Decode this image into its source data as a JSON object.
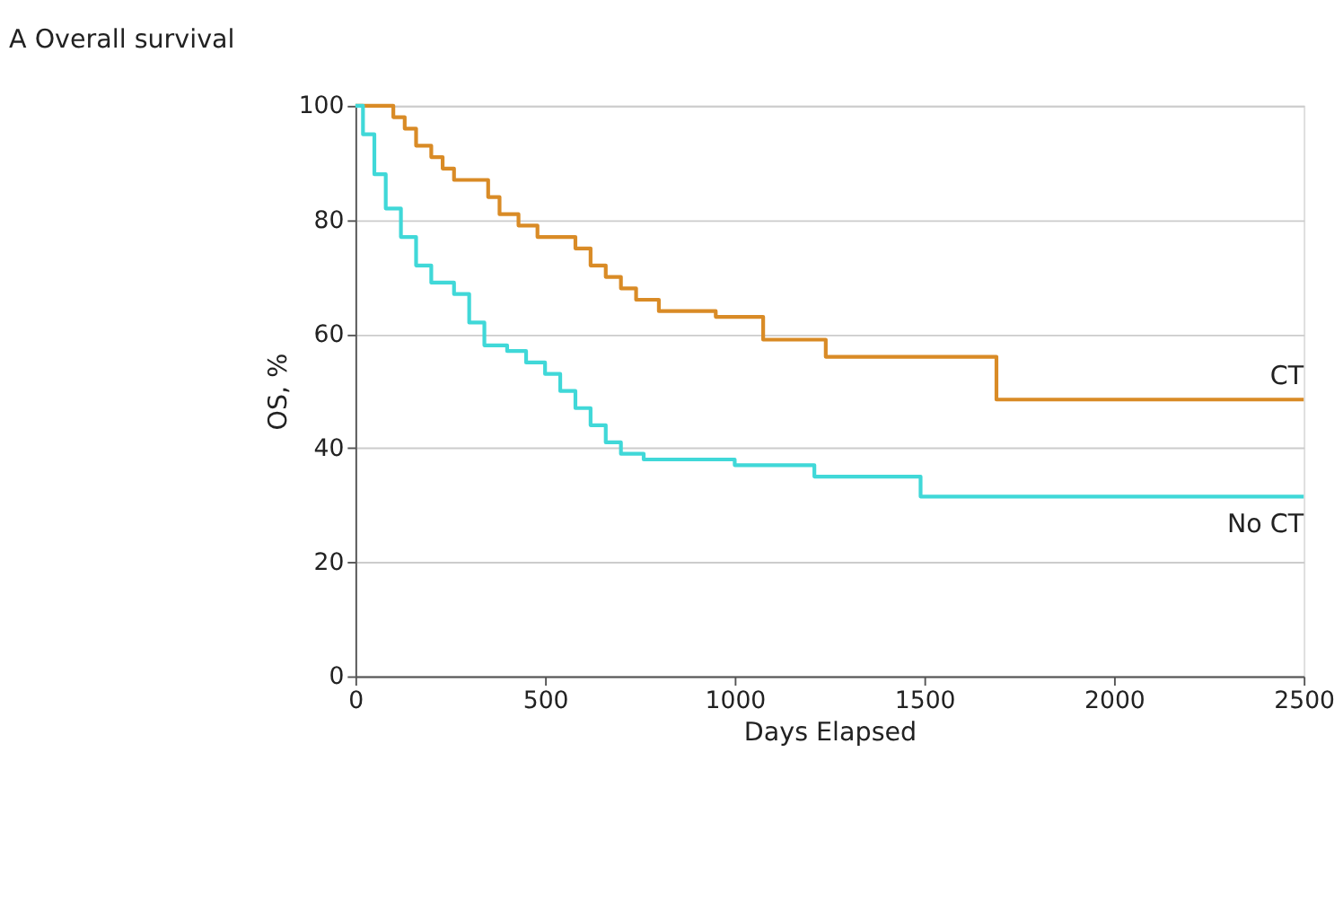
{
  "chart_data": {
    "type": "step",
    "title": "A Overall survival",
    "xlabel": "Days Elapsed",
    "ylabel": "OS, %",
    "xlim": [
      0,
      2500
    ],
    "xticks": [
      0,
      500,
      1000,
      1500,
      2000,
      2500
    ],
    "ylim": [
      0,
      100
    ],
    "yticks": [
      0,
      20,
      40,
      60,
      80,
      100
    ],
    "grid": "y",
    "legend": false,
    "line_style": "solid",
    "series": [
      {
        "name": "CT",
        "color": "#d98b26",
        "x": [
          0,
          100,
          130,
          160,
          200,
          230,
          260,
          350,
          380,
          430,
          480,
          580,
          620,
          660,
          700,
          740,
          800,
          950,
          1075,
          1240,
          1690,
          2500
        ],
        "values": [
          100,
          98,
          96,
          93,
          91,
          89,
          87,
          84,
          81,
          79,
          77,
          75,
          72,
          70,
          68,
          66,
          64,
          63,
          59,
          56,
          48.5,
          48.5
        ]
      },
      {
        "name": "No CT",
        "color": "#40d8d8",
        "x": [
          0,
          20,
          50,
          80,
          120,
          160,
          200,
          260,
          300,
          340,
          400,
          450,
          500,
          540,
          580,
          620,
          660,
          700,
          760,
          1000,
          1210,
          1490,
          2500
        ],
        "values": [
          100,
          95,
          88,
          82,
          77,
          72,
          69,
          67,
          62,
          58,
          57,
          55,
          53,
          50,
          47,
          44,
          41,
          39,
          38,
          37,
          35,
          31.5,
          31.5
        ]
      }
    ]
  }
}
